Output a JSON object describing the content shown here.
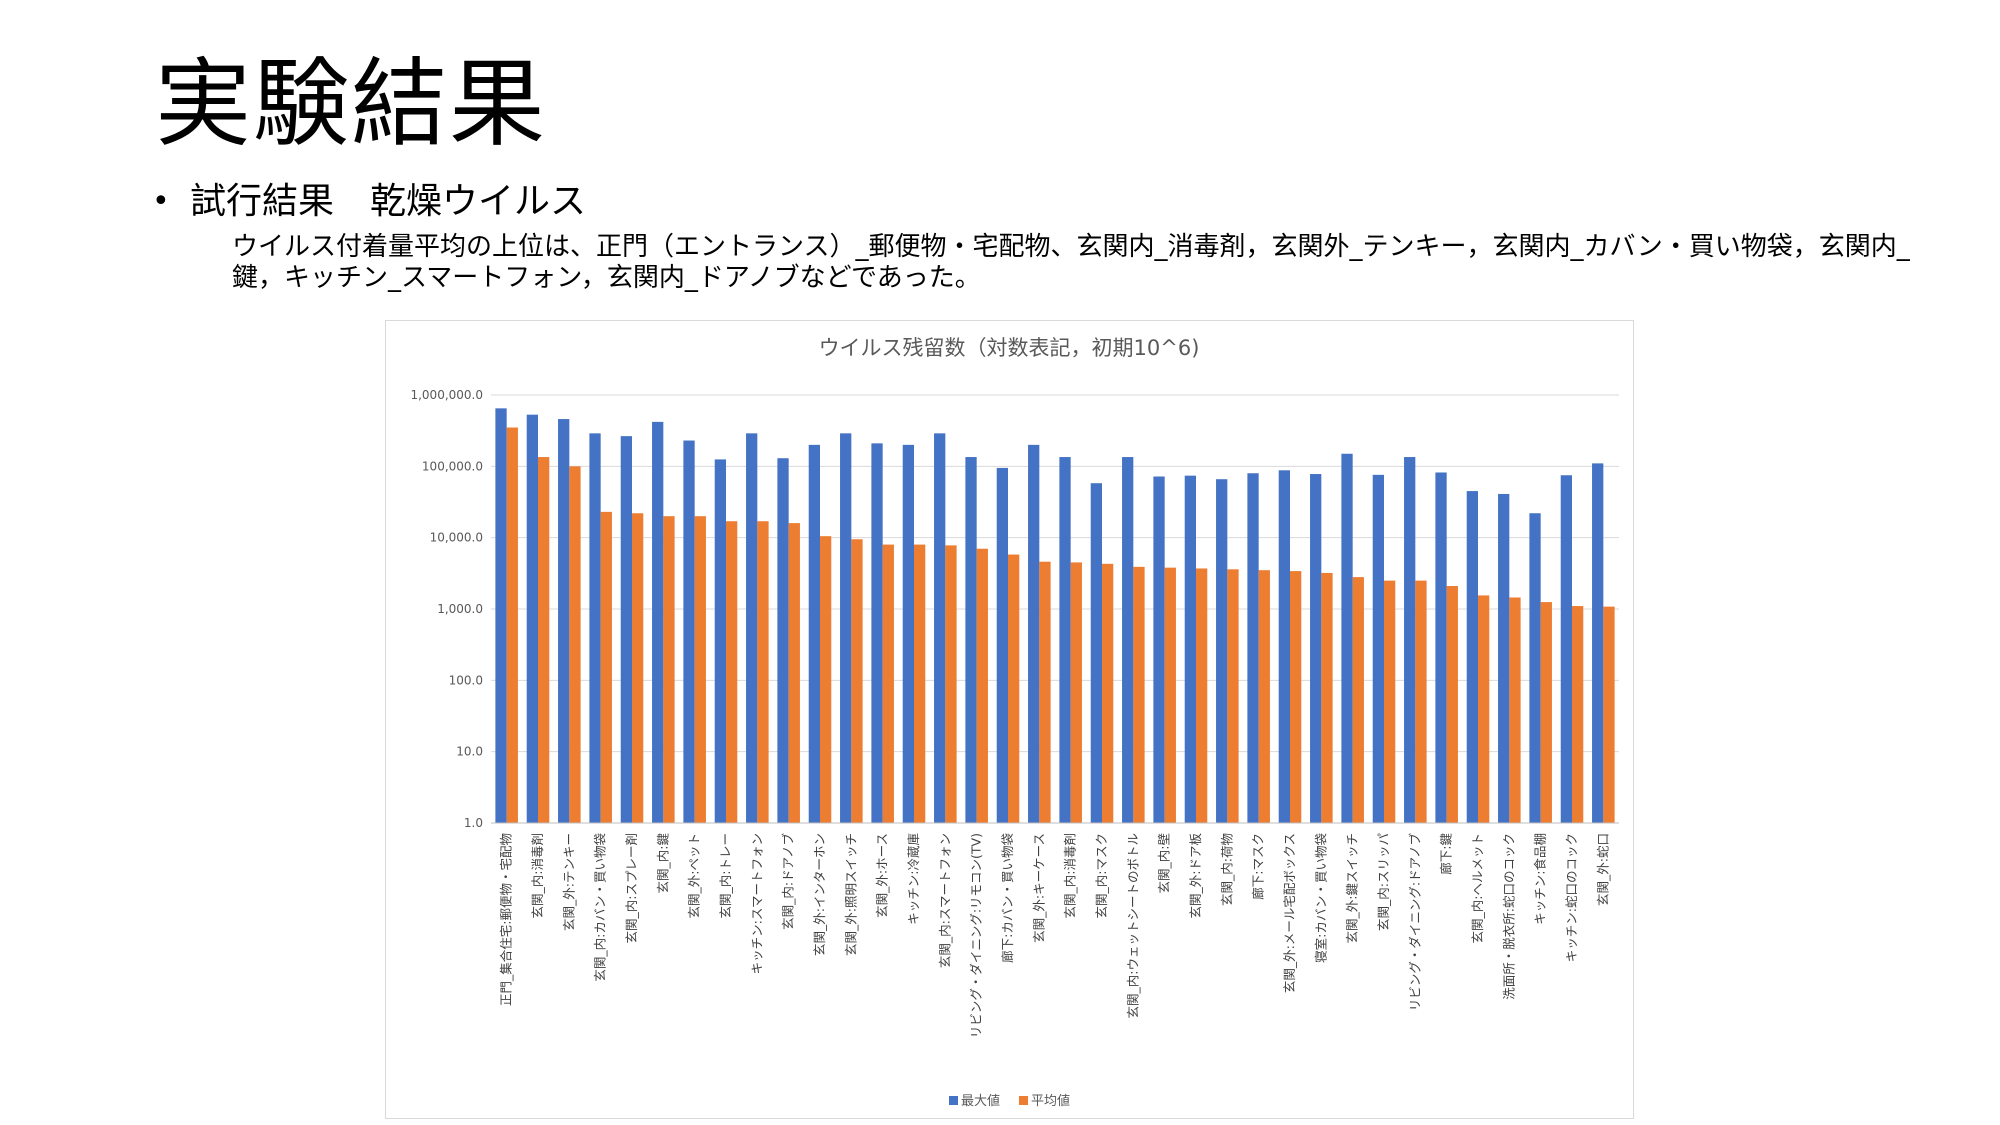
{
  "slide": {
    "title": "実験結果",
    "bullet": "試行結果　乾燥ウイルス",
    "bullet_marker": "•",
    "body": "ウイルス付着量平均の上位は、正門（エントランス）_郵便物・宅配物、玄関内_消毒剤，玄関外_テンキー，玄関内_カバン・買い物袋，玄関内_鍵，キッチン_スマートフォン，玄関内_ドアノブなどであった。"
  },
  "colors": {
    "series_max": "#4472C4",
    "series_avg": "#ED7D31",
    "gridline": "#d9d9d9"
  },
  "chart_data": {
    "type": "bar",
    "title": "ウイルス残留数（対数表記，初期10^6)",
    "yscale": "log",
    "ylim": [
      1,
      1000000
    ],
    "yticks": [
      "1,000,000.0",
      "100,000.0",
      "10,000.0",
      "1,000.0",
      "100.0",
      "10.0",
      "1.0"
    ],
    "legend_position": "bottom",
    "grid": true,
    "categories": [
      "正門_集合住宅:郵便物・宅配物",
      "玄関_内:消毒剤",
      "玄関_外:テンキー",
      "玄関_内:カバン・買い物袋",
      "玄関_内:スプレー剤",
      "玄関_内:鍵",
      "玄関_外:ペット",
      "玄関_内:トレー",
      "キッチン:スマートフォン",
      "玄関_内:ドアノブ",
      "玄関_外:インターホン",
      "玄関_外:照明スイッチ",
      "玄関_外:ホース",
      "キッチン:冷蔵庫",
      "玄関_内:スマートフォン",
      "リビング・ダイニング:リモコン(TV)",
      "廊下:カバン・買い物袋",
      "玄関_外:キーケース",
      "玄関_内:消毒剤",
      "玄関_内:マスク",
      "玄関_内:ウェットシートのボトル",
      "玄関_内:壁",
      "玄関_外:ドア板",
      "玄関_内:荷物",
      "廊下:マスク",
      "玄関_外:メール宅配ボックス",
      "寝室:カバン・買い物袋",
      "玄関_外:鍵スイッチ",
      "玄関_内:スリッパ",
      "リビング・ダイニング:ドアノブ",
      "廊下:鍵",
      "玄関_内:ヘルメット",
      "洗面所・脱衣所:蛇口のコック",
      "キッチン:食品棚",
      "キッチン:蛇口のコック",
      "玄関_外:蛇口"
    ],
    "series": [
      {
        "name": "最大値",
        "values": [
          650000,
          530000,
          460000,
          290000,
          265000,
          420000,
          230000,
          125000,
          290000,
          130000,
          200000,
          290000,
          210000,
          200000,
          290000,
          135000,
          95000,
          200000,
          135000,
          58000,
          135000,
          72000,
          74000,
          66000,
          80000,
          88000,
          78000,
          150000,
          76000,
          135000,
          82000,
          45000,
          41000,
          22000,
          75000,
          110000
        ]
      },
      {
        "name": "平均値",
        "values": [
          350000,
          135000,
          100000,
          23000,
          22000,
          20000,
          20000,
          17000,
          17000,
          16000,
          10500,
          9500,
          8000,
          8000,
          7800,
          7000,
          5800,
          4600,
          4500,
          4300,
          3900,
          3800,
          3700,
          3600,
          3500,
          3400,
          3200,
          2800,
          2500,
          2500,
          2100,
          1550,
          1450,
          1250,
          1100,
          1080
        ]
      }
    ]
  }
}
